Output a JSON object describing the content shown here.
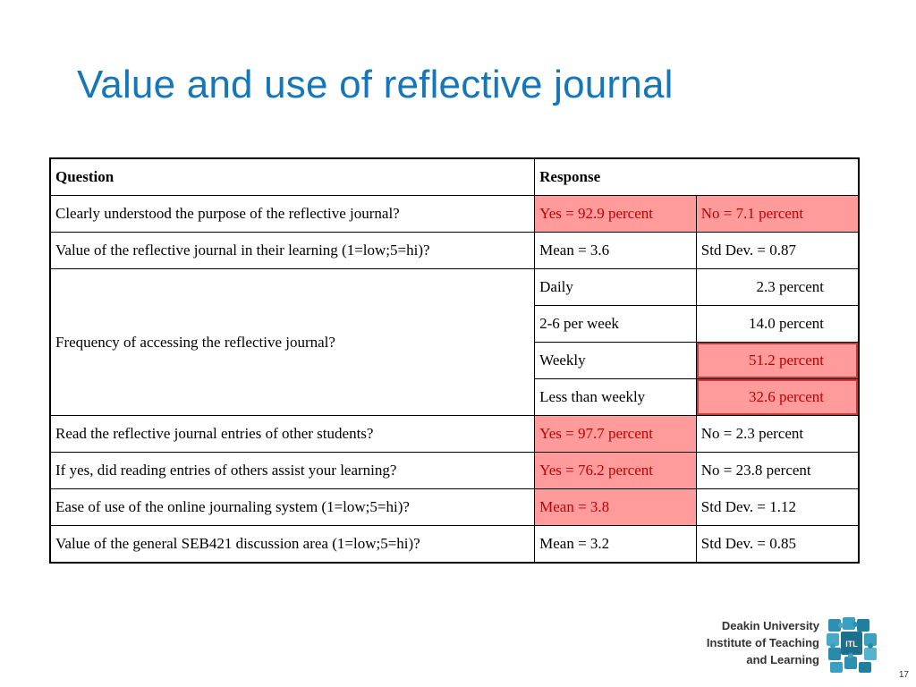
{
  "slide": {
    "title": "Value and use of reflective journal",
    "page_number": "17"
  },
  "table": {
    "headers": {
      "question": "Question",
      "response": "Response"
    },
    "rows": [
      {
        "question": "Clearly understood the purpose of the reflective journal?",
        "r1": "Yes = 92.9 percent",
        "r2": "No = 7.1 percent"
      },
      {
        "question": "Value of the reflective journal in their learning (1=low;5=hi)?",
        "r1": "Mean = 3.6",
        "r2": "Std Dev. = 0.87"
      },
      {
        "question": "Frequency of accessing the reflective journal?",
        "sub": [
          {
            "label": "Daily",
            "value": "2.3 percent"
          },
          {
            "label": "2-6 per week",
            "value": "14.0 percent"
          },
          {
            "label": "Weekly",
            "value": "51.2 percent"
          },
          {
            "label": "Less than weekly",
            "value": "32.6 percent"
          }
        ]
      },
      {
        "question": "Read the reflective journal entries of other students?",
        "r1": "Yes = 97.7 percent",
        "r2": "No = 2.3 percent"
      },
      {
        "question": "If yes, did reading entries of others assist your learning?",
        "r1": "Yes = 76.2 percent",
        "r2": "No = 23.8 percent"
      },
      {
        "question": "Ease of use of the online journaling system (1=low;5=hi)?",
        "r1": "Mean = 3.8",
        "r2": "Std Dev. = 1.12"
      },
      {
        "question": "Value of the general SEB421 discussion area (1=low;5=hi)?",
        "r1": "Mean = 3.2",
        "r2": "Std Dev. = 0.85"
      }
    ]
  },
  "logo": {
    "line1": "Deakin University",
    "line2": "Institute of Teaching",
    "line3": "and Learning",
    "badge": "ITL"
  },
  "colors": {
    "title": "#1577b8",
    "highlight_bg": "#ff9b9b",
    "highlight_text": "#c00000"
  }
}
